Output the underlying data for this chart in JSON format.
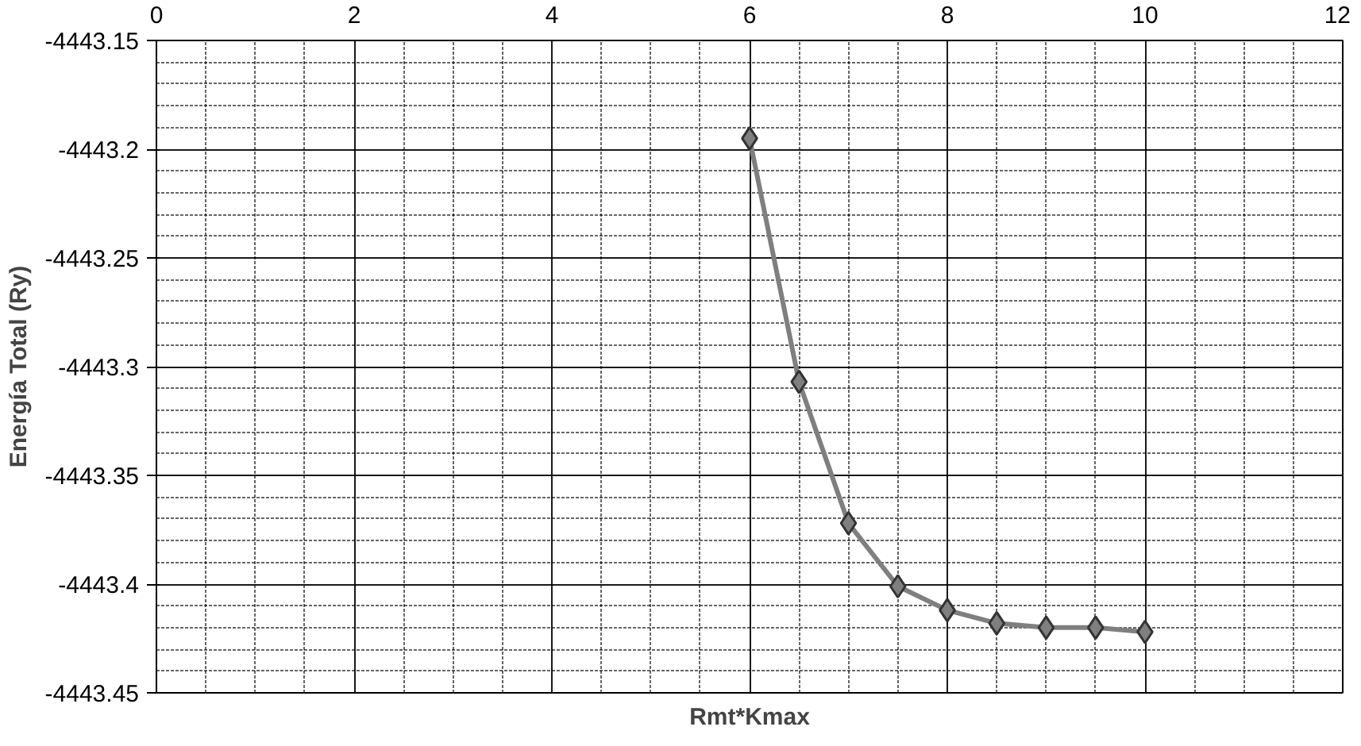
{
  "chart_data": {
    "type": "line",
    "xlabel": "Rmt*Kmax",
    "ylabel": "Energía Total (Ry)",
    "x": [
      6,
      6.5,
      7,
      7.5,
      8,
      8.5,
      9,
      9.5,
      10
    ],
    "series": [
      {
        "color": "#7f7f7f",
        "values": [
          -4443.195,
          -4443.307,
          -4443.372,
          -4443.401,
          -4443.412,
          -4443.418,
          -4443.42,
          -4443.42,
          -4443.422
        ]
      }
    ],
    "xlim": [
      0,
      12
    ],
    "xticks": [
      0,
      2,
      4,
      6,
      8,
      10,
      12
    ],
    "ylim": [
      -4443.45,
      -4443.15
    ],
    "yticks": [
      -4443.45,
      -4443.4,
      -4443.35,
      -4443.3,
      -4443.25,
      -4443.2,
      -4443.15
    ],
    "grid": true,
    "marker": "diamond",
    "line_style": "solid"
  }
}
